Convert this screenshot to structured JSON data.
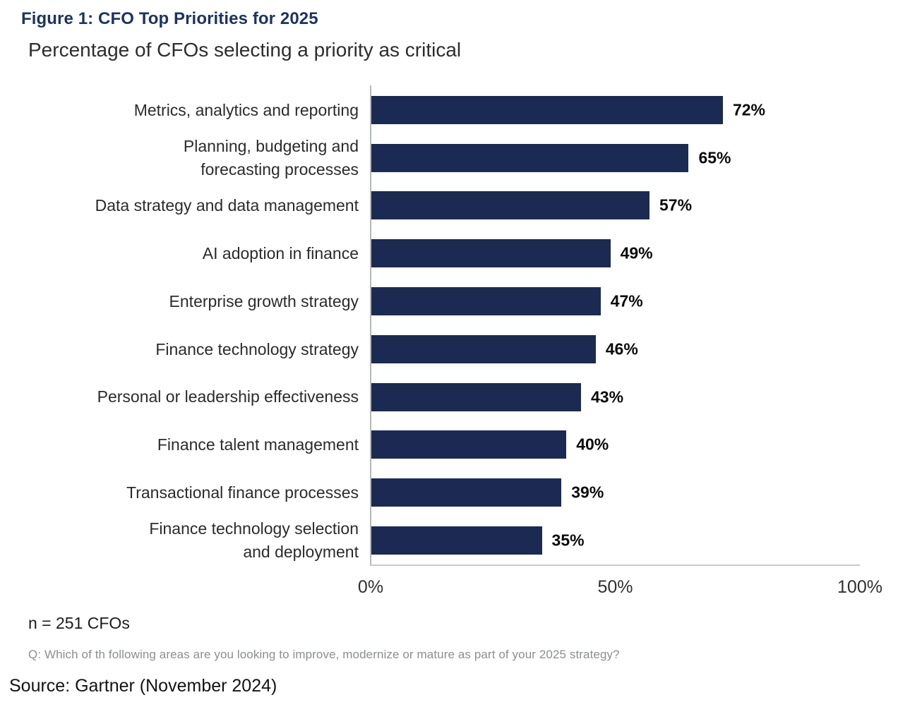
{
  "figure": {
    "title": "Figure 1: CFO Top Priorities for 2025",
    "subtitle": "Percentage of CFOs selecting a priority as critical"
  },
  "chart_data": {
    "type": "bar",
    "orientation": "horizontal",
    "title": "Figure 1: CFO Top Priorities for 2025",
    "subtitle": "Percentage of CFOs selecting a priority as critical",
    "categories": [
      "Metrics, analytics and reporting",
      "Planning, budgeting and\nforecasting processes",
      "Data strategy and data management",
      "AI adoption in finance",
      "Enterprise growth strategy",
      "Finance technology strategy",
      "Personal or leadership effectiveness",
      "Finance talent management",
      "Transactional finance processes",
      "Finance technology selection\nand deployment"
    ],
    "values": [
      72,
      65,
      57,
      49,
      47,
      46,
      43,
      40,
      39,
      35
    ],
    "value_labels": [
      "72%",
      "65%",
      "57%",
      "49%",
      "47%",
      "46%",
      "43%",
      "40%",
      "39%",
      "35%"
    ],
    "xlabel": "",
    "ylabel": "",
    "xlim": [
      0,
      100
    ],
    "x_tick_values": [
      0,
      50,
      100
    ],
    "x_tick_labels": [
      "0%",
      "50%",
      "100%"
    ],
    "grid": false,
    "legend": "none",
    "data_labels": "outside-end",
    "bar_color": "#1b2a52"
  },
  "notes": {
    "sample": "n = 251 CFOs",
    "question": "Q: Which of th following areas are you looking to improve, modernize or mature as part of your 2025 strategy?",
    "source": "Source: Gartner (November 2024)"
  },
  "colors": {
    "title": "#1c3461",
    "bar": "#1b2a52",
    "value_label": "#0b0b0b",
    "axis_line": "#b4bab8",
    "baseline": "#c9cbca",
    "question_text": "#8b8f90"
  }
}
